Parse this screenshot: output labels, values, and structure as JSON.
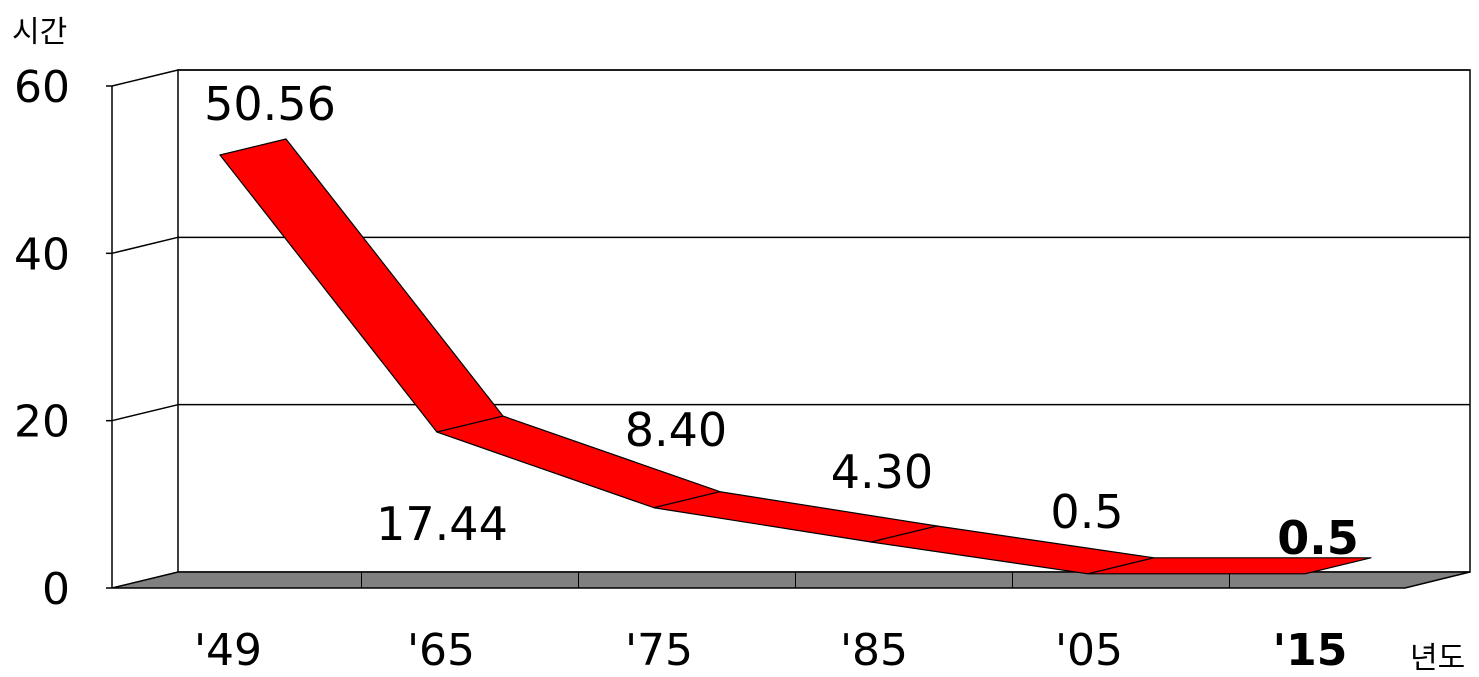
{
  "chart_data": {
    "type": "line",
    "style": "3d-ribbon",
    "ylabel": "시간",
    "xlabel": "년도",
    "ylim": [
      0,
      60
    ],
    "yticks": [
      "0",
      "20",
      "40",
      "60"
    ],
    "grid": true,
    "categories": [
      "'49",
      "'65",
      "'75",
      "'85",
      "'05",
      "'15"
    ],
    "series": [
      {
        "values": [
          50.56,
          17.44,
          8.4,
          4.3,
          0.5,
          0.5
        ],
        "labels": [
          "50.56",
          "17.44",
          "8.40",
          "4.30",
          "0.5",
          "0.5"
        ],
        "color": "#ff0000"
      }
    ],
    "highlight": [
      {
        "index": 4,
        "color": "#ff0000",
        "bold": false
      },
      {
        "index": 5,
        "color": "#0000ee",
        "bold": true
      }
    ],
    "colors": {
      "ribbon": "#ff0000",
      "floor": "#808080",
      "grid": "#000000",
      "text": "#000000"
    }
  }
}
